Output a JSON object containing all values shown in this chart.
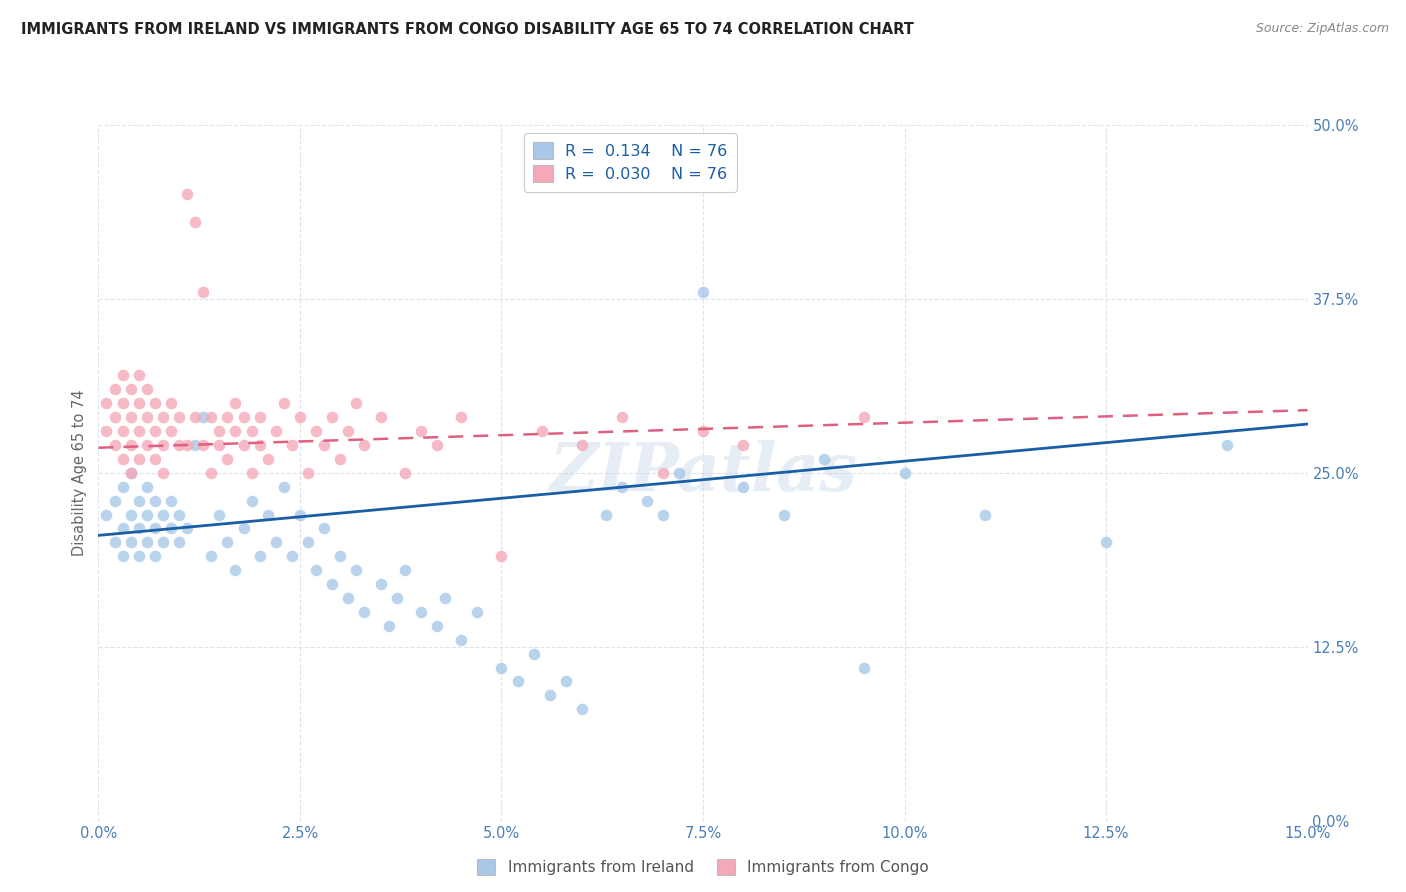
{
  "title": "IMMIGRANTS FROM IRELAND VS IMMIGRANTS FROM CONGO DISABILITY AGE 65 TO 74 CORRELATION CHART",
  "source": "Source: ZipAtlas.com",
  "ylabel": "Disability Age 65 to 74",
  "xlim": [
    0.0,
    0.15
  ],
  "ylim": [
    0.0,
    0.5
  ],
  "R_ireland": 0.134,
  "N_ireland": 76,
  "R_congo": 0.03,
  "N_congo": 76,
  "color_ireland": "#a8c8e8",
  "color_congo": "#f4a8b8",
  "line_color_ireland": "#1a5fa5",
  "line_color_congo": "#e06080",
  "background_color": "#ffffff",
  "grid_color": "#dde4ee",
  "legend_label_ireland": "Immigrants from Ireland",
  "legend_label_congo": "Immigrants from Congo",
  "watermark": "ZIPatlas",
  "ireland_x": [
    0.001,
    0.002,
    0.002,
    0.003,
    0.003,
    0.003,
    0.004,
    0.004,
    0.004,
    0.005,
    0.005,
    0.005,
    0.006,
    0.006,
    0.006,
    0.007,
    0.007,
    0.007,
    0.008,
    0.008,
    0.009,
    0.009,
    0.01,
    0.01,
    0.011,
    0.012,
    0.013,
    0.014,
    0.015,
    0.016,
    0.017,
    0.018,
    0.019,
    0.02,
    0.021,
    0.022,
    0.023,
    0.024,
    0.025,
    0.026,
    0.027,
    0.028,
    0.029,
    0.03,
    0.031,
    0.032,
    0.033,
    0.035,
    0.036,
    0.037,
    0.038,
    0.04,
    0.042,
    0.043,
    0.045,
    0.047,
    0.05,
    0.052,
    0.054,
    0.056,
    0.058,
    0.06,
    0.063,
    0.065,
    0.068,
    0.07,
    0.072,
    0.075,
    0.08,
    0.085,
    0.09,
    0.095,
    0.1,
    0.11,
    0.125,
    0.14
  ],
  "ireland_y": [
    0.22,
    0.2,
    0.23,
    0.21,
    0.19,
    0.24,
    0.2,
    0.22,
    0.25,
    0.21,
    0.23,
    0.19,
    0.22,
    0.2,
    0.24,
    0.21,
    0.23,
    0.19,
    0.22,
    0.2,
    0.23,
    0.21,
    0.22,
    0.2,
    0.21,
    0.27,
    0.29,
    0.19,
    0.22,
    0.2,
    0.18,
    0.21,
    0.23,
    0.19,
    0.22,
    0.2,
    0.24,
    0.19,
    0.22,
    0.2,
    0.18,
    0.21,
    0.17,
    0.19,
    0.16,
    0.18,
    0.15,
    0.17,
    0.14,
    0.16,
    0.18,
    0.15,
    0.14,
    0.16,
    0.13,
    0.15,
    0.11,
    0.1,
    0.12,
    0.09,
    0.1,
    0.08,
    0.22,
    0.24,
    0.23,
    0.22,
    0.25,
    0.38,
    0.24,
    0.22,
    0.26,
    0.11,
    0.25,
    0.22,
    0.2,
    0.27
  ],
  "congo_x": [
    0.001,
    0.001,
    0.002,
    0.002,
    0.002,
    0.003,
    0.003,
    0.003,
    0.003,
    0.004,
    0.004,
    0.004,
    0.004,
    0.005,
    0.005,
    0.005,
    0.005,
    0.006,
    0.006,
    0.006,
    0.007,
    0.007,
    0.007,
    0.008,
    0.008,
    0.008,
    0.009,
    0.009,
    0.01,
    0.01,
    0.011,
    0.011,
    0.012,
    0.012,
    0.013,
    0.013,
    0.014,
    0.014,
    0.015,
    0.015,
    0.016,
    0.016,
    0.017,
    0.017,
    0.018,
    0.018,
    0.019,
    0.019,
    0.02,
    0.02,
    0.021,
    0.022,
    0.023,
    0.024,
    0.025,
    0.026,
    0.027,
    0.028,
    0.029,
    0.03,
    0.031,
    0.032,
    0.033,
    0.035,
    0.038,
    0.04,
    0.042,
    0.045,
    0.05,
    0.055,
    0.06,
    0.065,
    0.07,
    0.075,
    0.08,
    0.095
  ],
  "congo_y": [
    0.28,
    0.3,
    0.27,
    0.29,
    0.31,
    0.26,
    0.28,
    0.3,
    0.32,
    0.27,
    0.29,
    0.31,
    0.25,
    0.28,
    0.3,
    0.26,
    0.32,
    0.27,
    0.29,
    0.31,
    0.26,
    0.28,
    0.3,
    0.27,
    0.29,
    0.25,
    0.28,
    0.3,
    0.27,
    0.29,
    0.45,
    0.27,
    0.43,
    0.29,
    0.38,
    0.27,
    0.29,
    0.25,
    0.28,
    0.27,
    0.29,
    0.26,
    0.28,
    0.3,
    0.27,
    0.29,
    0.25,
    0.28,
    0.27,
    0.29,
    0.26,
    0.28,
    0.3,
    0.27,
    0.29,
    0.25,
    0.28,
    0.27,
    0.29,
    0.26,
    0.28,
    0.3,
    0.27,
    0.29,
    0.25,
    0.28,
    0.27,
    0.29,
    0.19,
    0.28,
    0.27,
    0.29,
    0.25,
    0.28,
    0.27,
    0.29
  ],
  "ireland_line_x": [
    0.0,
    0.15
  ],
  "ireland_line_y": [
    0.205,
    0.285
  ],
  "congo_line_x": [
    0.0,
    0.15
  ],
  "congo_line_y": [
    0.268,
    0.295
  ]
}
